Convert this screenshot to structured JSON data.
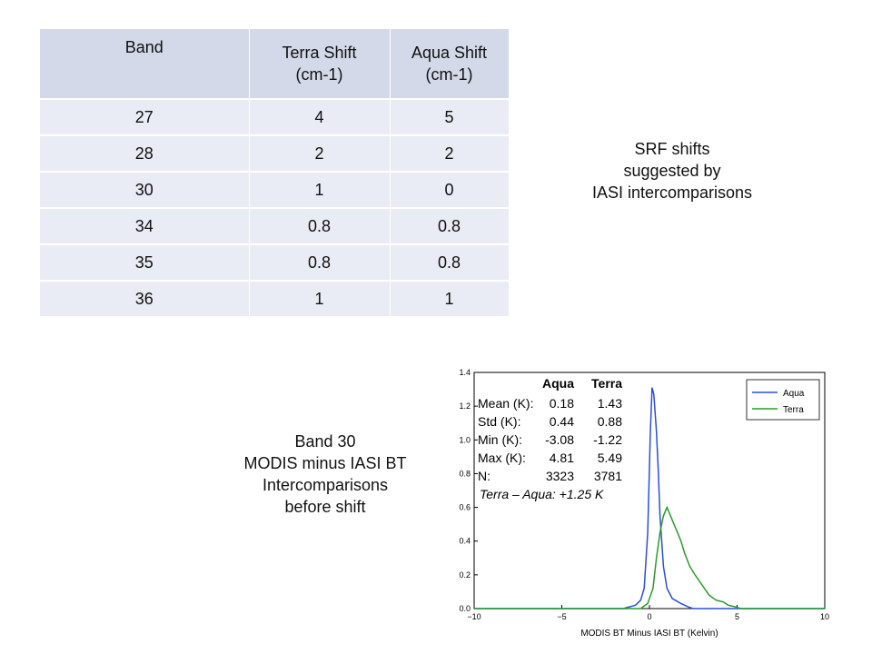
{
  "table": {
    "headers": [
      "Band",
      "Terra Shift\n(cm-1)",
      "Aqua Shift\n(cm-1)"
    ],
    "rows": [
      [
        "27",
        "4",
        "5"
      ],
      [
        "28",
        "2",
        "2"
      ],
      [
        "30",
        "1",
        "0"
      ],
      [
        "34",
        "0.8",
        "0.8"
      ],
      [
        "35",
        "0.8",
        "0.8"
      ],
      [
        "36",
        "1",
        "1"
      ]
    ]
  },
  "srf_note": "SRF shifts\nsuggested by\nIASI intercomparisons",
  "band_note": "Band 30\nMODIS minus IASI BT\nIntercomparisons\nbefore shift",
  "chart_data": {
    "type": "line",
    "title": "",
    "xlabel": "MODIS BT Minus IASI BT (Kelvin)",
    "ylabel": "",
    "xlim": [
      -10,
      10
    ],
    "ylim": [
      0,
      1.4
    ],
    "xticks": [
      "−10",
      "−5",
      "0",
      "5",
      "10"
    ],
    "yticks": [
      "0.0",
      "0.2",
      "0.4",
      "0.6",
      "0.8",
      "1.0",
      "1.2",
      "1.4"
    ],
    "grid": false,
    "legend_position": "top-right",
    "series": [
      {
        "name": "Aqua",
        "color": "#2a4fd7",
        "x": [
          -10,
          -1.5,
          -0.8,
          -0.5,
          -0.3,
          -0.1,
          0.05,
          0.15,
          0.25,
          0.4,
          0.5,
          0.6,
          0.8,
          1.0,
          1.3,
          1.8,
          2.2,
          2.5,
          10
        ],
        "y": [
          0,
          0,
          0.02,
          0.05,
          0.12,
          0.45,
          1.05,
          1.31,
          1.27,
          1.05,
          0.82,
          0.55,
          0.25,
          0.12,
          0.06,
          0.03,
          0.01,
          0,
          0
        ]
      },
      {
        "name": "Terra",
        "color": "#2a9a2a",
        "x": [
          -10,
          -0.5,
          -0.1,
          0.2,
          0.4,
          0.6,
          0.8,
          1.0,
          1.2,
          1.4,
          1.6,
          1.8,
          2.0,
          2.3,
          2.6,
          3.0,
          3.4,
          3.8,
          4.2,
          4.5,
          4.9,
          5.2,
          10
        ],
        "y": [
          0,
          0,
          0.03,
          0.12,
          0.3,
          0.45,
          0.55,
          0.6,
          0.55,
          0.5,
          0.45,
          0.4,
          0.33,
          0.25,
          0.2,
          0.14,
          0.08,
          0.05,
          0.04,
          0.02,
          0.01,
          0,
          0
        ]
      }
    ],
    "annotation": {
      "header": [
        "",
        "Aqua",
        "Terra"
      ],
      "rows": [
        [
          "Mean (K):",
          "0.18",
          "1.43"
        ],
        [
          "Std (K):",
          "0.44",
          "0.88"
        ],
        [
          "Min (K):",
          "-3.08",
          "-1.22"
        ],
        [
          "Max (K):",
          "4.81",
          "5.49"
        ],
        [
          "N:",
          "3323",
          "3781"
        ]
      ],
      "note": "Terra  – Aqua: +1.25 K"
    }
  }
}
